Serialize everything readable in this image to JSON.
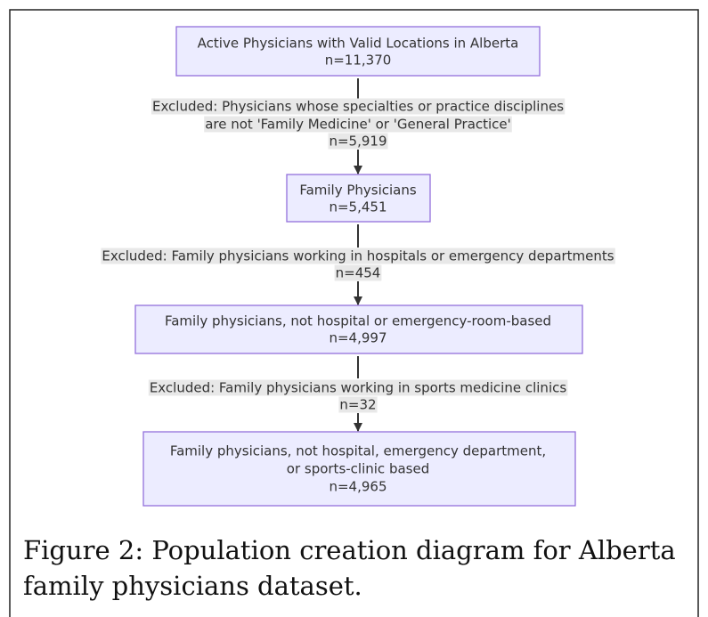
{
  "nodes": [
    {
      "lines": [
        "Active Physicians with Valid Locations in Alberta",
        "n=11,370"
      ]
    },
    {
      "lines": [
        "Family Physicians",
        "n=5,451"
      ]
    },
    {
      "lines": [
        "Family physicians, not hospital or emergency-room-based",
        "n=4,997"
      ]
    },
    {
      "lines": [
        "Family physicians, not hospital, emergency department,",
        "or sports-clinic based",
        "n=4,965"
      ]
    }
  ],
  "edges": [
    {
      "lines": [
        "Excluded: Physicians whose specialties or practice disciplines",
        "are not 'Family Medicine' or 'General Practice'",
        "n=5,919"
      ]
    },
    {
      "lines": [
        "Excluded: Family physicians working in hospitals or emergency departments",
        "n=454"
      ]
    },
    {
      "lines": [
        "Excluded: Family physicians working in sports medicine clinics",
        "n=32"
      ]
    }
  ],
  "caption": [
    "Figure 2: Population creation diagram for Alberta",
    "family physicians dataset."
  ]
}
